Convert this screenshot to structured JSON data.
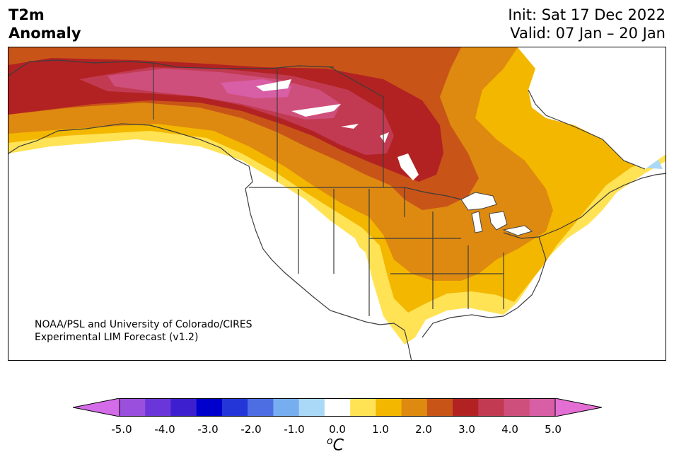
{
  "title": {
    "left_line1": "T2m",
    "left_line2": "Anomaly",
    "init": "Init: Sat 17 Dec 2022",
    "valid": "Valid: 07 Jan – 20 Jan"
  },
  "credit": {
    "line1": "NOAA/PSL and University of Colorado/CIRES",
    "line2": "Experimental LIM Forecast (v1.2)"
  },
  "colorbar": {
    "colors": [
      "#d46be8",
      "#9a4fdd",
      "#6a35d9",
      "#3d1fcf",
      "#0000cc",
      "#2536d9",
      "#4d6ee3",
      "#77aef0",
      "#aad8f7",
      "#ffffff",
      "#ffe355",
      "#f4b700",
      "#de8a10",
      "#c85418",
      "#b22222",
      "#c23a52",
      "#cf4f7c",
      "#d85ea5",
      "#e46fd4"
    ],
    "ticks": [
      "-5.0",
      "-4.0",
      "-3.0",
      "-2.0",
      "-1.0",
      "0.0",
      "1.0",
      "2.0",
      "3.0",
      "4.0",
      "5.0"
    ],
    "unit_base": "C",
    "unit_sup": "o"
  }
}
